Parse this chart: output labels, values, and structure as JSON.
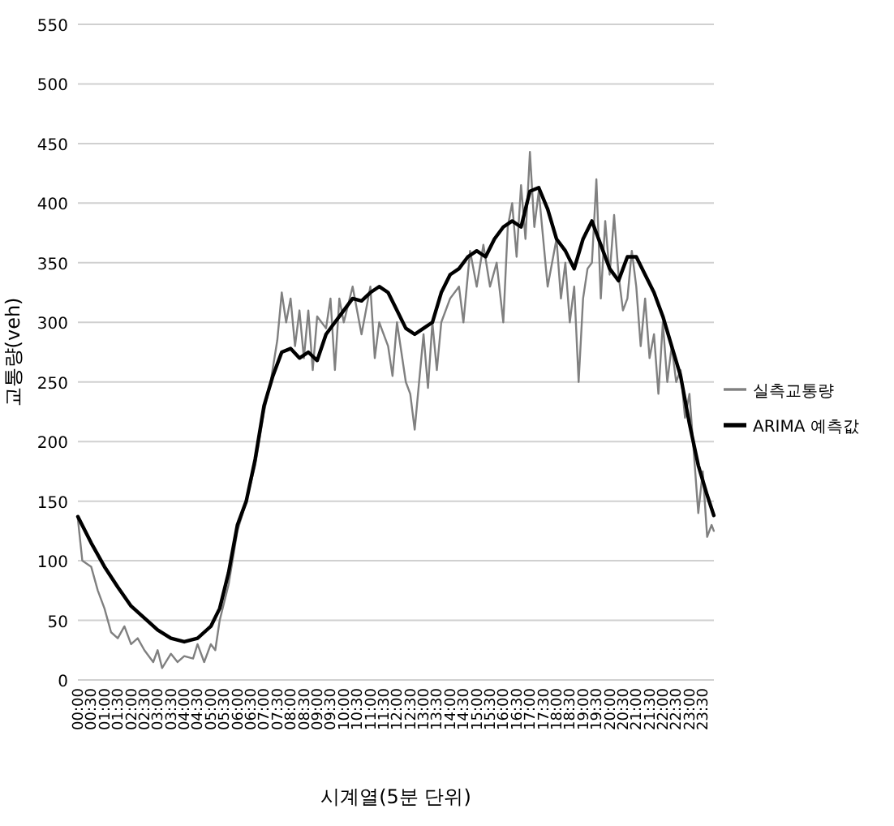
{
  "chart_data": {
    "type": "line",
    "xlabel": "시계열(5분 단위)",
    "ylabel": "교통량(veh)",
    "xlim": [
      0,
      23.92
    ],
    "ylim": [
      0,
      550
    ],
    "yticks": [
      0,
      50,
      100,
      150,
      200,
      250,
      300,
      350,
      400,
      450,
      500,
      550
    ],
    "xticks": [
      {
        "value": 0,
        "label": "00:00"
      },
      {
        "value": 0.5,
        "label": "00:30"
      },
      {
        "value": 1,
        "label": "01:00"
      },
      {
        "value": 1.5,
        "label": "01:30"
      },
      {
        "value": 2,
        "label": "02:00"
      },
      {
        "value": 2.5,
        "label": "02:30"
      },
      {
        "value": 3,
        "label": "03:00"
      },
      {
        "value": 3.5,
        "label": "03:30"
      },
      {
        "value": 4,
        "label": "04:00"
      },
      {
        "value": 4.5,
        "label": "04:30"
      },
      {
        "value": 5,
        "label": "05:00"
      },
      {
        "value": 5.5,
        "label": "05:30"
      },
      {
        "value": 6,
        "label": "06:00"
      },
      {
        "value": 6.5,
        "label": "06:30"
      },
      {
        "value": 7,
        "label": "07:00"
      },
      {
        "value": 7.5,
        "label": "07:30"
      },
      {
        "value": 8,
        "label": "08:00"
      },
      {
        "value": 8.5,
        "label": "08:30"
      },
      {
        "value": 9,
        "label": "09:00"
      },
      {
        "value": 9.5,
        "label": "09:30"
      },
      {
        "value": 10,
        "label": "10:00"
      },
      {
        "value": 10.5,
        "label": "10:30"
      },
      {
        "value": 11,
        "label": "11:00"
      },
      {
        "value": 11.5,
        "label": "11:30"
      },
      {
        "value": 12,
        "label": "12:00"
      },
      {
        "value": 12.5,
        "label": "12:30"
      },
      {
        "value": 13,
        "label": "13:00"
      },
      {
        "value": 13.5,
        "label": "13:30"
      },
      {
        "value": 14,
        "label": "14:00"
      },
      {
        "value": 14.5,
        "label": "14:30"
      },
      {
        "value": 15,
        "label": "15:00"
      },
      {
        "value": 15.5,
        "label": "15:30"
      },
      {
        "value": 16,
        "label": "16:00"
      },
      {
        "value": 16.5,
        "label": "16:30"
      },
      {
        "value": 17,
        "label": "17:00"
      },
      {
        "value": 17.5,
        "label": "17:30"
      },
      {
        "value": 18,
        "label": "18:00"
      },
      {
        "value": 18.5,
        "label": "18:30"
      },
      {
        "value": 19,
        "label": "19:00"
      },
      {
        "value": 19.5,
        "label": "19:30"
      },
      {
        "value": 20,
        "label": "20:00"
      },
      {
        "value": 20.5,
        "label": "20:30"
      },
      {
        "value": 21,
        "label": "21:00"
      },
      {
        "value": 21.5,
        "label": "21:30"
      },
      {
        "value": 22,
        "label": "22:00"
      },
      {
        "value": 22.5,
        "label": "22:30"
      },
      {
        "value": 23,
        "label": "23:00"
      },
      {
        "value": 23.5,
        "label": "23:30"
      }
    ],
    "grid": "y",
    "legend": "right",
    "marker": "none",
    "line_style": "solid",
    "series": [
      {
        "name": "실측교통량",
        "color": "#808080",
        "x": [
          0,
          0.167,
          0.5,
          0.75,
          1,
          1.25,
          1.5,
          1.75,
          2,
          2.25,
          2.5,
          2.833,
          3,
          3.167,
          3.5,
          3.75,
          4,
          4.333,
          4.5,
          4.75,
          5,
          5.167,
          5.333,
          5.667,
          6,
          6.333,
          6.667,
          7,
          7.25,
          7.5,
          7.667,
          7.833,
          8,
          8.167,
          8.333,
          8.5,
          8.667,
          8.833,
          9,
          9.333,
          9.5,
          9.667,
          9.833,
          10,
          10.333,
          10.667,
          11,
          11.167,
          11.333,
          11.667,
          11.833,
          12,
          12.167,
          12.333,
          12.5,
          12.667,
          12.833,
          13,
          13.167,
          13.333,
          13.5,
          13.667,
          14,
          14.333,
          14.5,
          14.75,
          15,
          15.25,
          15.5,
          15.75,
          16,
          16.167,
          16.333,
          16.5,
          16.667,
          16.833,
          17,
          17.167,
          17.333,
          17.5,
          17.667,
          18,
          18.167,
          18.333,
          18.5,
          18.667,
          18.833,
          19,
          19.167,
          19.333,
          19.5,
          19.667,
          19.833,
          20,
          20.167,
          20.333,
          20.5,
          20.667,
          20.833,
          21,
          21.167,
          21.333,
          21.5,
          21.667,
          21.833,
          22,
          22.167,
          22.333,
          22.5,
          22.667,
          22.833,
          23,
          23.167,
          23.333,
          23.5,
          23.667,
          23.833,
          23.917
        ],
        "values": [
          135,
          100,
          95,
          75,
          60,
          40,
          35,
          45,
          30,
          35,
          25,
          15,
          25,
          10,
          22,
          15,
          20,
          18,
          30,
          15,
          30,
          25,
          50,
          80,
          125,
          150,
          180,
          225,
          250,
          285,
          325,
          300,
          320,
          280,
          310,
          270,
          310,
          260,
          305,
          295,
          320,
          260,
          320,
          300,
          330,
          290,
          330,
          270,
          300,
          280,
          255,
          300,
          275,
          250,
          240,
          210,
          250,
          290,
          245,
          300,
          260,
          300,
          320,
          330,
          300,
          360,
          330,
          365,
          330,
          350,
          300,
          380,
          400,
          355,
          415,
          370,
          443,
          380,
          410,
          370,
          330,
          370,
          320,
          350,
          300,
          330,
          250,
          320,
          345,
          350,
          420,
          320,
          385,
          340,
          390,
          340,
          310,
          320,
          360,
          330,
          280,
          320,
          270,
          290,
          240,
          300,
          250,
          280,
          250,
          260,
          220,
          240,
          190,
          140,
          175,
          120,
          130,
          125
        ]
      },
      {
        "name": "ARIMA 예측값",
        "color": "#000000",
        "x": [
          0,
          0.5,
          1,
          1.5,
          2,
          2.5,
          3,
          3.5,
          4,
          4.5,
          5,
          5.333,
          5.667,
          6,
          6.333,
          6.667,
          7,
          7.333,
          7.667,
          8,
          8.333,
          8.667,
          9,
          9.333,
          9.667,
          10,
          10.333,
          10.667,
          11,
          11.333,
          11.667,
          12,
          12.333,
          12.667,
          13,
          13.333,
          13.667,
          14,
          14.333,
          14.667,
          15,
          15.333,
          15.667,
          16,
          16.333,
          16.667,
          17,
          17.333,
          17.667,
          18,
          18.333,
          18.667,
          19,
          19.333,
          19.667,
          20,
          20.333,
          20.667,
          21,
          21.333,
          21.667,
          22,
          22.333,
          22.667,
          23,
          23.333,
          23.667,
          23.917
        ],
        "values": [
          137,
          115,
          95,
          78,
          62,
          52,
          42,
          35,
          32,
          35,
          45,
          60,
          90,
          130,
          150,
          185,
          230,
          255,
          275,
          278,
          270,
          275,
          268,
          290,
          300,
          310,
          320,
          318,
          325,
          330,
          325,
          310,
          295,
          290,
          295,
          300,
          325,
          340,
          345,
          355,
          360,
          355,
          370,
          380,
          385,
          380,
          410,
          413,
          395,
          370,
          360,
          345,
          370,
          385,
          365,
          345,
          335,
          355,
          355,
          340,
          325,
          305,
          280,
          255,
          215,
          180,
          155,
          138
        ]
      }
    ]
  }
}
